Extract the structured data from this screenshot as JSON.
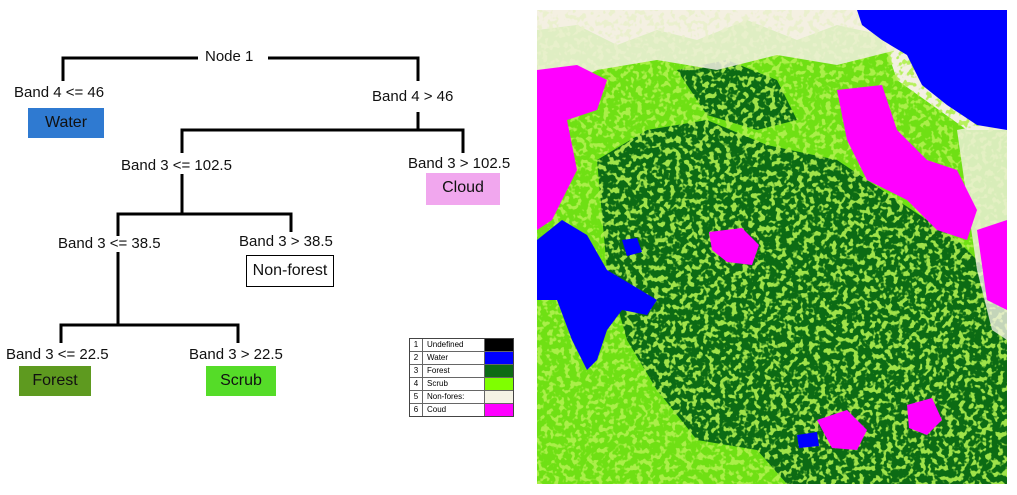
{
  "tree": {
    "root": "Node 1",
    "left_condition": "Band 4 <= 46",
    "right_condition": "Band 4 > 46",
    "water_label": "Water",
    "band3_low": "Band 3 <= 102.5",
    "band3_high": "Band 3 > 102.5",
    "cloud_label": "Cloud",
    "band3_low2": "Band 3 <= 38.5",
    "band3_high2": "Band 3 > 38.5",
    "nonforest_label": "Non-forest",
    "band3_low3": "Band 3 <= 22.5",
    "band3_high3": "Band 3 > 22.5",
    "forest_label": "Forest",
    "scrub_label": "Scrub"
  },
  "colors": {
    "water_box": "#2f7ad1",
    "cloud_box": "#f1a7ee",
    "forest_box": "#5e9a1f",
    "scrub_box": "#55dc28",
    "map_water": "#0000ff",
    "map_forest": "#0c6b14",
    "map_scrub": "#6fe014",
    "map_nonforest": "#f3f0e2",
    "map_cloud": "#ff00ff"
  },
  "legend": [
    {
      "num": "1",
      "name": "Undefined",
      "color": "#000000"
    },
    {
      "num": "2",
      "name": "Water",
      "color": "#0000ff"
    },
    {
      "num": "3",
      "name": "Forest",
      "color": "#0c6b14"
    },
    {
      "num": "4",
      "name": "Scrub",
      "color": "#7fff00"
    },
    {
      "num": "5",
      "name": "Non-fores:",
      "color": "#f5f3e4"
    },
    {
      "num": "6",
      "name": "Coud",
      "color": "#ff00ff"
    }
  ]
}
